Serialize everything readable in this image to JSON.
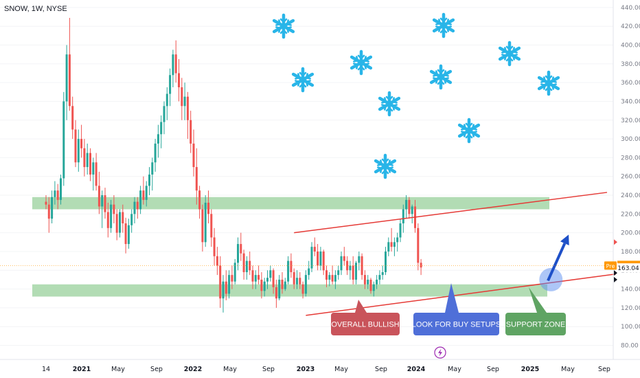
{
  "header": {
    "ticker_label": "SNOW, 1W, NYSE"
  },
  "colors": {
    "up": "#26a69a",
    "down": "#ef5350",
    "zone": "#a5d6a7",
    "channel": "#e53935",
    "bullish_box": "#c9545b",
    "buy_box": "#4f6fd8",
    "support_box": "#5fa463",
    "arrow": "#1e50c8",
    "snowflake": "#29b5e8"
  },
  "chart_data": {
    "type": "candlestick",
    "title": "SNOW, 1W, NYSE",
    "ylim": [
      65,
      448
    ],
    "y_ticks": [
      80,
      100,
      120,
      140,
      160,
      180,
      200,
      220,
      240,
      260,
      280,
      300,
      320,
      340,
      360,
      380,
      400,
      420,
      440
    ],
    "x_labels": [
      "14",
      "2021",
      "May",
      "Sep",
      "2022",
      "May",
      "Sep",
      "2023",
      "May",
      "Sep",
      "2024",
      "May",
      "Sep",
      "2025",
      "May",
      "Sep"
    ],
    "year_labels": [
      "2021",
      "2022",
      "2023",
      "2024",
      "2025"
    ],
    "price_markers": {
      "pre": {
        "tag": "Pre",
        "value": "165.02"
      },
      "last": {
        "value": "163.04"
      }
    },
    "support_zones": [
      {
        "name": "resistance-zone",
        "low": 225,
        "high": 238
      },
      {
        "name": "support-zone",
        "low": 132,
        "high": 145
      }
    ],
    "channel": {
      "upper": [
        {
          "week": 84,
          "price": 200
        },
        {
          "week": 190,
          "price": 243
        }
      ],
      "lower": [
        {
          "week": 88,
          "price": 112
        },
        {
          "week": 193,
          "price": 156
        }
      ]
    },
    "arrow": {
      "from": {
        "week": 170,
        "price": 149
      },
      "to": {
        "week": 177,
        "price": 198
      }
    },
    "highlight": {
      "week": 171,
      "price": 150
    },
    "callouts": [
      {
        "name": "overall-bullish",
        "text": "OVERALL BULLISH",
        "pointer": {
          "week": 135,
          "price": 140
        }
      },
      {
        "name": "look-for-buy-setups",
        "text": "LOOK FOR BUY SETUPS",
        "pointer": {
          "week": 170,
          "price": 150
        }
      },
      {
        "name": "support-zone",
        "text": "SUPPORT ZONE",
        "pointer": {
          "week": 201,
          "price": 140
        }
      }
    ],
    "candles": [
      [
        233,
        240,
        225,
        230
      ],
      [
        230,
        238,
        200,
        215
      ],
      [
        215,
        245,
        210,
        238
      ],
      [
        238,
        255,
        230,
        245
      ],
      [
        245,
        252,
        225,
        235
      ],
      [
        235,
        262,
        230,
        258
      ],
      [
        258,
        350,
        250,
        340
      ],
      [
        340,
        400,
        320,
        390
      ],
      [
        390,
        429,
        330,
        335
      ],
      [
        335,
        345,
        300,
        310
      ],
      [
        310,
        320,
        270,
        275
      ],
      [
        275,
        310,
        265,
        300
      ],
      [
        300,
        315,
        280,
        290
      ],
      [
        290,
        300,
        260,
        270
      ],
      [
        270,
        295,
        262,
        285
      ],
      [
        285,
        290,
        255,
        262
      ],
      [
        262,
        280,
        245,
        275
      ],
      [
        275,
        285,
        245,
        250
      ],
      [
        250,
        265,
        220,
        228
      ],
      [
        228,
        245,
        205,
        240
      ],
      [
        240,
        248,
        215,
        222
      ],
      [
        222,
        232,
        195,
        205
      ],
      [
        205,
        235,
        200,
        230
      ],
      [
        230,
        240,
        210,
        220
      ],
      [
        220,
        225,
        192,
        200
      ],
      [
        200,
        225,
        195,
        222
      ],
      [
        222,
        230,
        200,
        210
      ],
      [
        210,
        216,
        178,
        188
      ],
      [
        188,
        215,
        183,
        208
      ],
      [
        208,
        225,
        200,
        220
      ],
      [
        220,
        238,
        210,
        233
      ],
      [
        233,
        238,
        215,
        225
      ],
      [
        225,
        250,
        220,
        245
      ],
      [
        245,
        260,
        230,
        235
      ],
      [
        235,
        255,
        228,
        250
      ],
      [
        250,
        270,
        240,
        262
      ],
      [
        262,
        280,
        245,
        275
      ],
      [
        275,
        300,
        265,
        295
      ],
      [
        295,
        315,
        280,
        305
      ],
      [
        305,
        325,
        290,
        318
      ],
      [
        318,
        340,
        305,
        335
      ],
      [
        335,
        355,
        320,
        348
      ],
      [
        348,
        375,
        335,
        368
      ],
      [
        368,
        395,
        355,
        390
      ],
      [
        390,
        405,
        360,
        370
      ],
      [
        370,
        385,
        340,
        355
      ],
      [
        355,
        365,
        320,
        335
      ],
      [
        335,
        360,
        320,
        345
      ],
      [
        345,
        350,
        300,
        320
      ],
      [
        320,
        330,
        285,
        295
      ],
      [
        295,
        310,
        260,
        270
      ],
      [
        270,
        290,
        230,
        245
      ],
      [
        245,
        250,
        215,
        225
      ],
      [
        225,
        230,
        180,
        190
      ],
      [
        190,
        240,
        185,
        232
      ],
      [
        232,
        245,
        210,
        220
      ],
      [
        220,
        225,
        185,
        195
      ],
      [
        195,
        205,
        165,
        175
      ],
      [
        175,
        185,
        155,
        165
      ],
      [
        165,
        175,
        120,
        130
      ],
      [
        130,
        155,
        115,
        148
      ],
      [
        148,
        160,
        128,
        135
      ],
      [
        135,
        160,
        130,
        155
      ],
      [
        155,
        165,
        140,
        148
      ],
      [
        148,
        172,
        145,
        168
      ],
      [
        168,
        195,
        160,
        188
      ],
      [
        188,
        200,
        170,
        178
      ],
      [
        178,
        182,
        150,
        158
      ],
      [
        158,
        175,
        150,
        170
      ],
      [
        170,
        180,
        155,
        160
      ],
      [
        160,
        165,
        140,
        148
      ],
      [
        148,
        160,
        140,
        155
      ],
      [
        155,
        165,
        145,
        150
      ],
      [
        150,
        158,
        130,
        138
      ],
      [
        138,
        152,
        132,
        148
      ],
      [
        148,
        160,
        140,
        152
      ],
      [
        152,
        165,
        148,
        160
      ],
      [
        160,
        162,
        135,
        142
      ],
      [
        142,
        150,
        120,
        130
      ],
      [
        130,
        155,
        128,
        150
      ],
      [
        150,
        158,
        135,
        140
      ],
      [
        140,
        152,
        138,
        148
      ],
      [
        148,
        175,
        145,
        170
      ],
      [
        170,
        178,
        152,
        158
      ],
      [
        158,
        162,
        140,
        145
      ],
      [
        145,
        160,
        140,
        152
      ],
      [
        152,
        158,
        140,
        145
      ],
      [
        145,
        148,
        130,
        135
      ],
      [
        135,
        160,
        132,
        155
      ],
      [
        155,
        170,
        150,
        162
      ],
      [
        162,
        190,
        158,
        185
      ],
      [
        185,
        195,
        175,
        180
      ],
      [
        180,
        188,
        160,
        165
      ],
      [
        165,
        185,
        160,
        180
      ],
      [
        180,
        182,
        155,
        160
      ],
      [
        160,
        165,
        142,
        150
      ],
      [
        150,
        158,
        143,
        155
      ],
      [
        155,
        165,
        145,
        148
      ],
      [
        148,
        160,
        140,
        155
      ],
      [
        155,
        165,
        150,
        160
      ],
      [
        160,
        180,
        155,
        175
      ],
      [
        175,
        185,
        165,
        170
      ],
      [
        170,
        175,
        155,
        160
      ],
      [
        160,
        170,
        150,
        165
      ],
      [
        165,
        175,
        145,
        150
      ],
      [
        150,
        170,
        145,
        168
      ],
      [
        168,
        180,
        160,
        175
      ],
      [
        175,
        178,
        150,
        155
      ],
      [
        155,
        160,
        140,
        145
      ],
      [
        145,
        155,
        140,
        150
      ],
      [
        150,
        152,
        135,
        138
      ],
      [
        138,
        148,
        132,
        145
      ],
      [
        145,
        155,
        140,
        150
      ],
      [
        150,
        160,
        145,
        155
      ],
      [
        155,
        165,
        150,
        158
      ],
      [
        158,
        185,
        155,
        180
      ],
      [
        180,
        195,
        175,
        190
      ],
      [
        190,
        205,
        180,
        185
      ],
      [
        185,
        195,
        175,
        190
      ],
      [
        190,
        200,
        180,
        195
      ],
      [
        195,
        215,
        190,
        210
      ],
      [
        210,
        230,
        200,
        225
      ],
      [
        225,
        240,
        215,
        235
      ],
      [
        235,
        238,
        215,
        220
      ],
      [
        220,
        230,
        210,
        228
      ],
      [
        228,
        235,
        200,
        205
      ],
      [
        205,
        210,
        160,
        168
      ],
      [
        168,
        172,
        155,
        163
      ]
    ]
  }
}
